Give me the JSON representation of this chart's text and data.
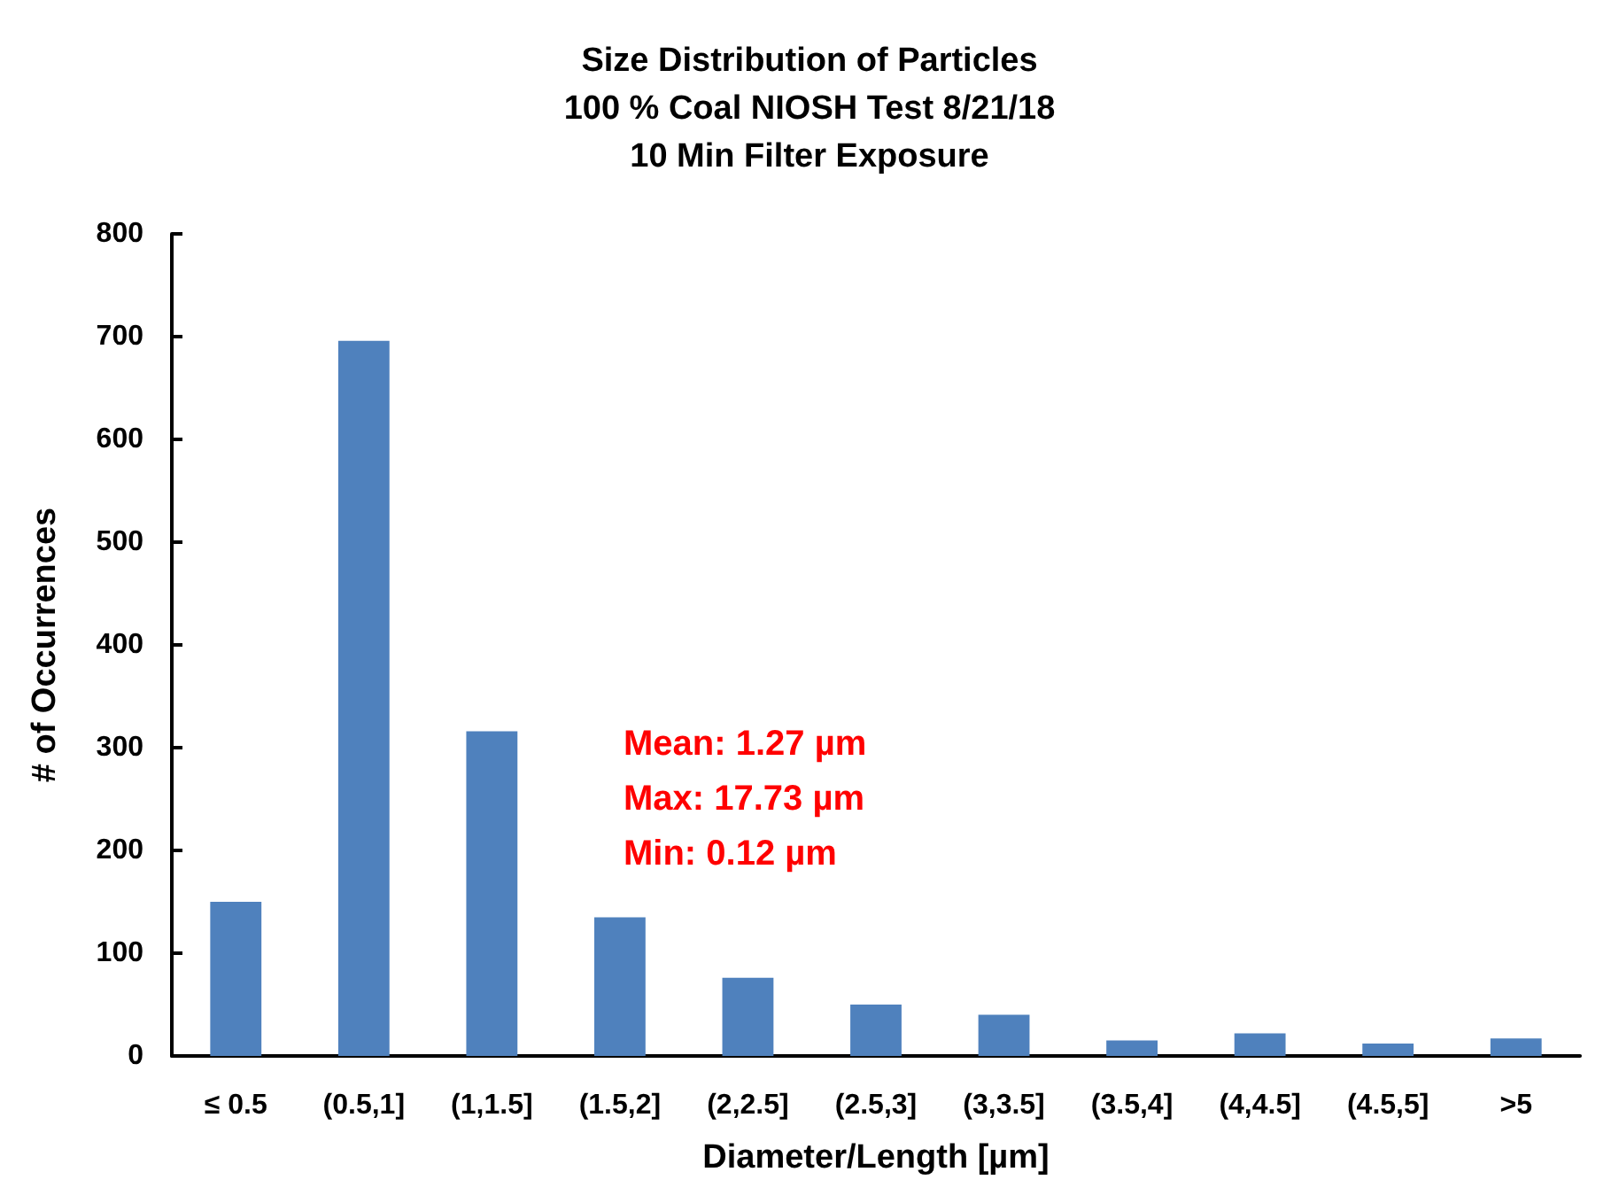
{
  "chart_data": {
    "type": "bar",
    "title": "Size Distribution of Particles\n100 % Coal NIOSH Test 8/21/18\n10 Min Filter Exposure",
    "xlabel": "Diameter/Length [µm]",
    "ylabel": "# of Occurrences",
    "categories": [
      "≤ 0.5",
      "(0.5,1]",
      "(1,1.5]",
      "(1.5,2]",
      "(2,2.5]",
      "(2.5,3]",
      "(3,3.5]",
      "(3.5,4]",
      "(4,4.5]",
      "(4.5,5]",
      ">5"
    ],
    "values": [
      150,
      696,
      316,
      135,
      76,
      50,
      40,
      15,
      22,
      12,
      17
    ],
    "color": "#4f81bd",
    "ylim": [
      0,
      800
    ],
    "yticks": [
      0,
      100,
      200,
      300,
      400,
      500,
      600,
      700,
      800
    ],
    "annotations": [
      "Mean: 1.27 µm",
      "Max: 17.73 µm",
      "Min: 0.12 µm"
    ]
  }
}
